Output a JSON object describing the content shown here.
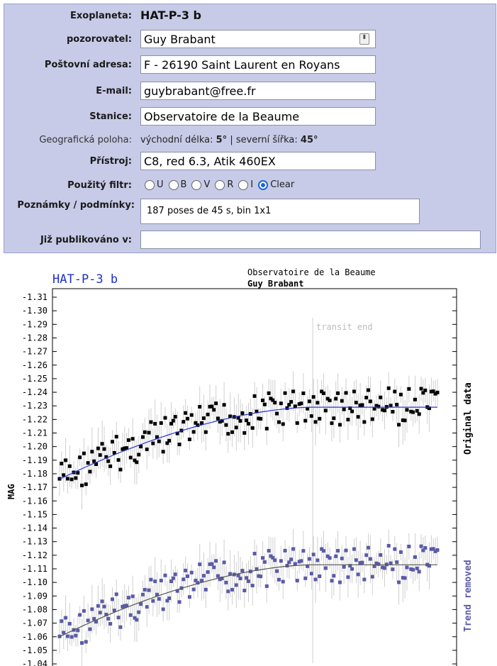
{
  "form": {
    "planet_label": "Exoplaneta:",
    "planet_value": "HAT-P-3 b",
    "observer_label": "pozorovatel:",
    "observer_value": "Guy Brabant",
    "address_label": "Poštovní adresa:",
    "address_value": "F - 26190 Saint Laurent en Royans",
    "email_label": "E-mail:",
    "email_value": "guybrabant@free.fr",
    "station_label": "Stanice:",
    "station_value": "Observatoire de la Beaume",
    "geo_label": "Geografická poloha:",
    "geo_lon_label": "východní délka:",
    "geo_lon_value": "5°",
    "geo_sep": "|",
    "geo_lat_label": "severní šířka:",
    "geo_lat_value": "45°",
    "instrument_label": "Přístroj:",
    "instrument_value": "C8, red 6.3, Atik 460EX",
    "filter_label": "Použitý filtr:",
    "filters": [
      "U",
      "B",
      "V",
      "R",
      "I",
      "Clear"
    ],
    "filter_selected": "Clear",
    "notes_label": "Poznámky / podmínky:",
    "notes_value": "187 poses de 45 s, bin 1x1",
    "published_label": "Již publikováno v:",
    "published_value": ""
  },
  "chart_data": {
    "type": "scatter",
    "title": "HAT-P-3 b",
    "subtitle_station": "Observatoire de la Beaume",
    "subtitle_observer": "Guy Brabant",
    "ylabel": "MAG",
    "ylim": [
      -1.31,
      -1.04
    ],
    "yticks": [
      "-1.31",
      "-1.30",
      "-1.29",
      "-1.28",
      "-1.27",
      "-1.26",
      "-1.25",
      "-1.24",
      "-1.23",
      "-1.22",
      "-1.21",
      "-1.20",
      "-1.19",
      "-1.18",
      "-1.17",
      "-1.16",
      "-1.15",
      "-1.14",
      "-1.13",
      "-1.12",
      "-1.11",
      "-1.10",
      "-1.09",
      "-1.08",
      "-1.07",
      "-1.06",
      "-1.05",
      "-1.04"
    ],
    "annotation": "transit end",
    "annotation_x": 0.67,
    "series": [
      {
        "name": "Original data",
        "color": "#000000",
        "model_color": "#2b35d8",
        "model": [
          [
            0,
            -1.176
          ],
          [
            0.33,
            -1.207
          ],
          [
            0.67,
            -1.229
          ],
          [
            1,
            -1.229
          ]
        ]
      },
      {
        "name": "Trend removed",
        "color": "#5a5aa8",
        "model_color": "#555555",
        "model": [
          [
            0,
            -1.06
          ],
          [
            0.33,
            -1.092
          ],
          [
            0.67,
            -1.113
          ],
          [
            1,
            -1.113
          ]
        ]
      }
    ],
    "grid": false
  }
}
